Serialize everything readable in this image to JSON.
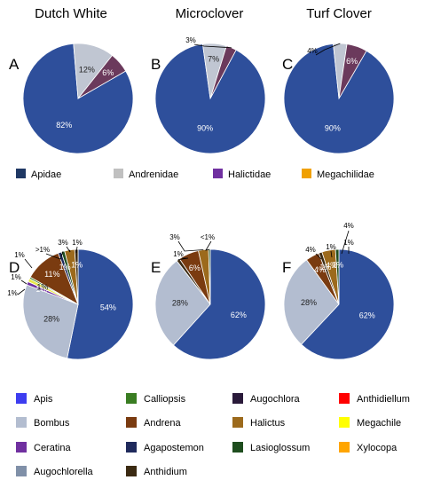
{
  "chart_data": [
    {
      "type": "pie",
      "panel": "A",
      "title": "Dutch White",
      "slices": [
        {
          "label": "Apidae",
          "value": 82,
          "text": "82%",
          "color": "#2e4f9b"
        },
        {
          "label": "Andrenidae",
          "value": 12,
          "text": "12%",
          "color": "#c0c6d2"
        },
        {
          "label": "Halictidae",
          "value": 6,
          "text": "6%",
          "color": "#6b3a5c"
        }
      ]
    },
    {
      "type": "pie",
      "panel": "B",
      "title": "Microclover",
      "slices": [
        {
          "label": "Apidae",
          "value": 90,
          "text": "90%",
          "color": "#2e4f9b"
        },
        {
          "label": "Andrenidae",
          "value": 7,
          "text": "7%",
          "color": "#c0c6d2"
        },
        {
          "label": "Halictidae",
          "value": 3,
          "text": "3%",
          "color": "#6b3a5c"
        }
      ]
    },
    {
      "type": "pie",
      "panel": "C",
      "title": "Turf Clover",
      "slices": [
        {
          "label": "Apidae",
          "value": 90,
          "text": "90%",
          "color": "#2e4f9b"
        },
        {
          "label": "Andrenidae",
          "value": 4,
          "text": "4%",
          "color": "#c0c6d2"
        },
        {
          "label": "Halictidae",
          "value": 6,
          "text": "6%",
          "color": "#6b3a5c"
        }
      ]
    },
    {
      "type": "pie",
      "panel": "D",
      "slices": [
        {
          "label": "Apis",
          "value": 54,
          "text": "54%",
          "color": "#2e4f9b"
        },
        {
          "label": "Bombus",
          "value": 28,
          "text": "28%",
          "color": "#b3bdd0"
        },
        {
          "label": "Ceratina",
          "value": 1,
          "text": "1%",
          "color": "#7030a0"
        },
        {
          "label": "Megachile",
          "value": 1,
          "text": "1%",
          "color": "#e8e84a"
        },
        {
          "label": "Calliopsis",
          "value": 0.5,
          "text": "",
          "color": "#3a7d22"
        },
        {
          "label": "Andrena",
          "value": 11,
          "text": "11%",
          "color": "#7a3b10"
        },
        {
          "label": "Agapostemon",
          "value": 1,
          "text": "1%",
          "color": "#1f2a5c"
        },
        {
          "label": "Lasioglossum",
          "value": 1,
          "text": ">1%",
          "color": "#1e4d1e"
        },
        {
          "label": "Halictus",
          "value": 3,
          "text": "3%",
          "color": "#9c6a1c"
        },
        {
          "label": "Anthidium",
          "value": 1,
          "text": "1%",
          "color": "#3b2a12"
        }
      ]
    },
    {
      "type": "pie",
      "panel": "E",
      "slices": [
        {
          "label": "Apis",
          "value": 62,
          "text": "62%",
          "color": "#2e4f9b"
        },
        {
          "label": "Bombus",
          "value": 28,
          "text": "28%",
          "color": "#b3bdd0"
        },
        {
          "label": "Anthidium",
          "value": 1,
          "text": "1%",
          "color": "#3b2a12"
        },
        {
          "label": "Andrena",
          "value": 6,
          "text": "6%",
          "color": "#7a3b10"
        },
        {
          "label": "Halictus",
          "value": 3,
          "text": "3%",
          "color": "#9c6a1c"
        },
        {
          "label": "Lasioglossum",
          "value": 0.5,
          "text": "<1%",
          "color": "#1e4d1e"
        }
      ]
    },
    {
      "type": "pie",
      "panel": "F",
      "slices": [
        {
          "label": "Apis",
          "value": 62,
          "text": "62%",
          "color": "#2e4f9b"
        },
        {
          "label": "Bombus",
          "value": 28,
          "text": "28%",
          "color": "#b3bdd0"
        },
        {
          "label": "Andrena",
          "value": 4,
          "text": "4%",
          "color": "#7a3b10"
        },
        {
          "label": "Anthidium",
          "value": 1,
          "text": "1%",
          "color": "#3b2a12"
        },
        {
          "label": "Halictus",
          "value": 4,
          "text": "4%",
          "color": "#9c6a1c"
        },
        {
          "label": "Lasioglossum",
          "value": 1,
          "text": "1%",
          "color": "#1e4d1e"
        }
      ]
    }
  ],
  "legend_family": [
    {
      "label": "Apidae",
      "color": "#1f3864"
    },
    {
      "label": "Andrenidae",
      "color": "#c0c0c0"
    },
    {
      "label": "Halictidae",
      "color": "#7030a0"
    },
    {
      "label": "Megachilidae",
      "color": "#f0a000"
    }
  ],
  "legend_genus": [
    {
      "label": "Apis",
      "color": "#3d3df0"
    },
    {
      "label": "Calliopsis",
      "color": "#3a7d22"
    },
    {
      "label": "Augochlora",
      "color": "#2a1a3a"
    },
    {
      "label": "Anthidiellum",
      "color": "#ff0000"
    },
    {
      "label": "Bombus",
      "color": "#b3bdd0"
    },
    {
      "label": "Andrena",
      "color": "#7a3b10"
    },
    {
      "label": "Halictus",
      "color": "#9c6a1c"
    },
    {
      "label": "Megachile",
      "color": "#ffff00"
    },
    {
      "label": "Ceratina",
      "color": "#7030a0"
    },
    {
      "label": "Agapostemon",
      "color": "#1f2a5c"
    },
    {
      "label": "Lasioglossum",
      "color": "#1e4d1e"
    },
    {
      "label": "Xylocopa",
      "color": "#ffa500"
    },
    {
      "label": "Augochlorella",
      "color": "#8090a8"
    },
    {
      "label": "Anthidium",
      "color": "#3b2a12"
    }
  ]
}
